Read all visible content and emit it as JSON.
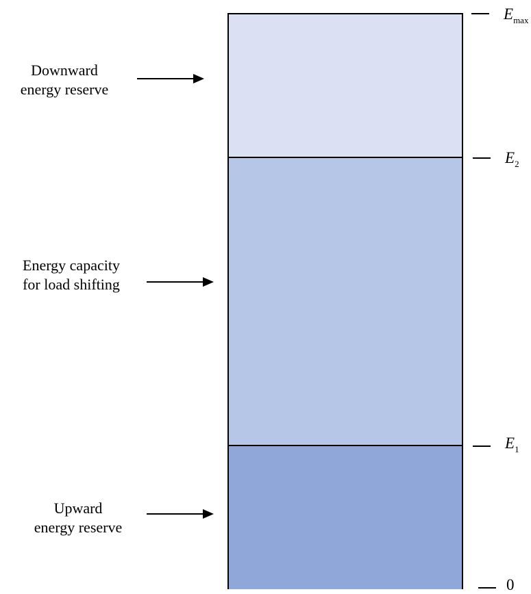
{
  "regions": {
    "downward": {
      "line1": "Downward",
      "line2": "energy reserve",
      "color": "#dbe1f3"
    },
    "capacity": {
      "line1": "Energy capacity",
      "line2": "for load shifting",
      "color": "#b6c6e7"
    },
    "upward": {
      "line1": "Upward",
      "line2": "energy reserve",
      "color": "#8fa8d9"
    }
  },
  "levels": {
    "max": {
      "symbol": "E",
      "subscript": "max"
    },
    "e2": {
      "symbol": "E",
      "subscript": "2"
    },
    "e1": {
      "symbol": "E",
      "subscript": "1"
    },
    "zero": {
      "text": "0"
    }
  }
}
